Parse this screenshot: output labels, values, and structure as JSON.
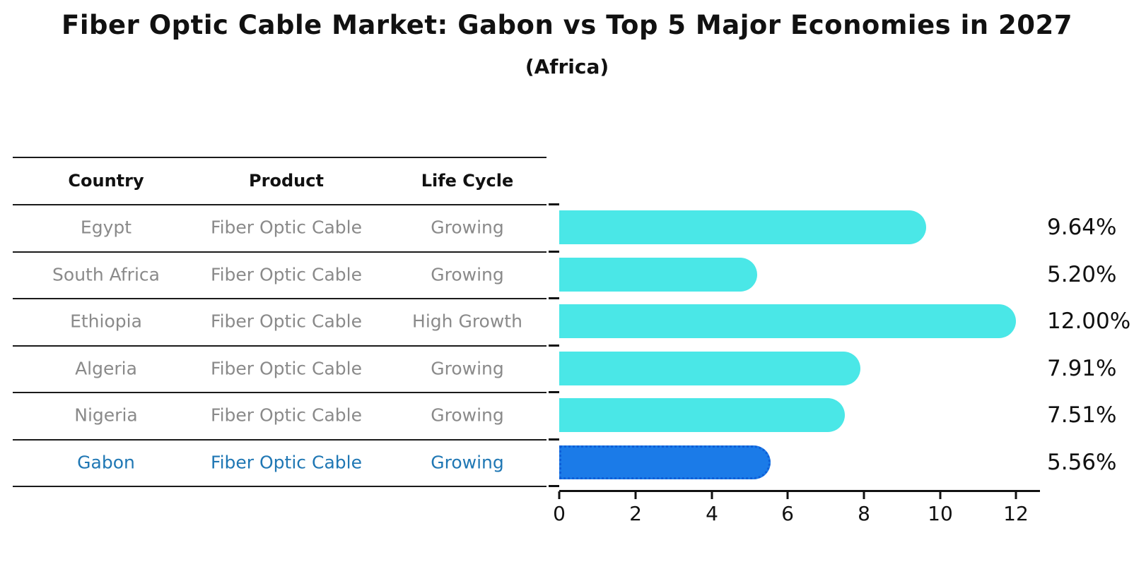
{
  "title": "Fiber Optic Cable Market: Gabon vs Top 5 Major Economies in 2027",
  "subtitle": "(Africa)",
  "table": {
    "headers": [
      "Country",
      "Product",
      "Life Cycle"
    ],
    "rows": [
      {
        "country": "Egypt",
        "product": "Fiber Optic Cable",
        "life_cycle": "Growing",
        "highlight": false
      },
      {
        "country": "South Africa",
        "product": "Fiber Optic Cable",
        "life_cycle": "Growing",
        "highlight": false
      },
      {
        "country": "Ethiopia",
        "product": "Fiber Optic Cable",
        "life_cycle": "High Growth",
        "highlight": false
      },
      {
        "country": "Algeria",
        "product": "Fiber Optic Cable",
        "life_cycle": "Growing",
        "highlight": false
      },
      {
        "country": "Nigeria",
        "product": "Fiber Optic Cable",
        "life_cycle": "Growing",
        "highlight": false
      },
      {
        "country": "Gabon",
        "product": "Fiber Optic Cable",
        "life_cycle": "Growing",
        "highlight": true
      }
    ]
  },
  "chart_data": {
    "type": "bar",
    "orientation": "horizontal",
    "title": "Fiber Optic Cable Market: Gabon vs Top 5 Major Economies in 2027",
    "subtitle": "(Africa)",
    "categories": [
      "Egypt",
      "South Africa",
      "Ethiopia",
      "Algeria",
      "Nigeria",
      "Gabon"
    ],
    "values": [
      9.64,
      5.2,
      12.0,
      7.91,
      7.51,
      5.56
    ],
    "value_labels": [
      "9.64%",
      "5.20%",
      "12.00%",
      "7.91%",
      "7.51%",
      "5.56%"
    ],
    "xlabel": "",
    "ylabel": "",
    "xlim": [
      0,
      12.65
    ],
    "xticks": [
      0,
      2,
      4,
      6,
      8,
      10,
      12
    ],
    "xtick_labels": [
      "0",
      "2",
      "4",
      "6",
      "8",
      "10",
      "12"
    ],
    "grid": false,
    "legend_position": "none",
    "bar_color": "#4ae7e7",
    "highlight_color": "#1b7be8",
    "highlight_border_color": "#0f5fd7",
    "highlight_index": 5,
    "highlight_text_color": "#1f77b4",
    "table_text_color": "#8a8a8a"
  }
}
